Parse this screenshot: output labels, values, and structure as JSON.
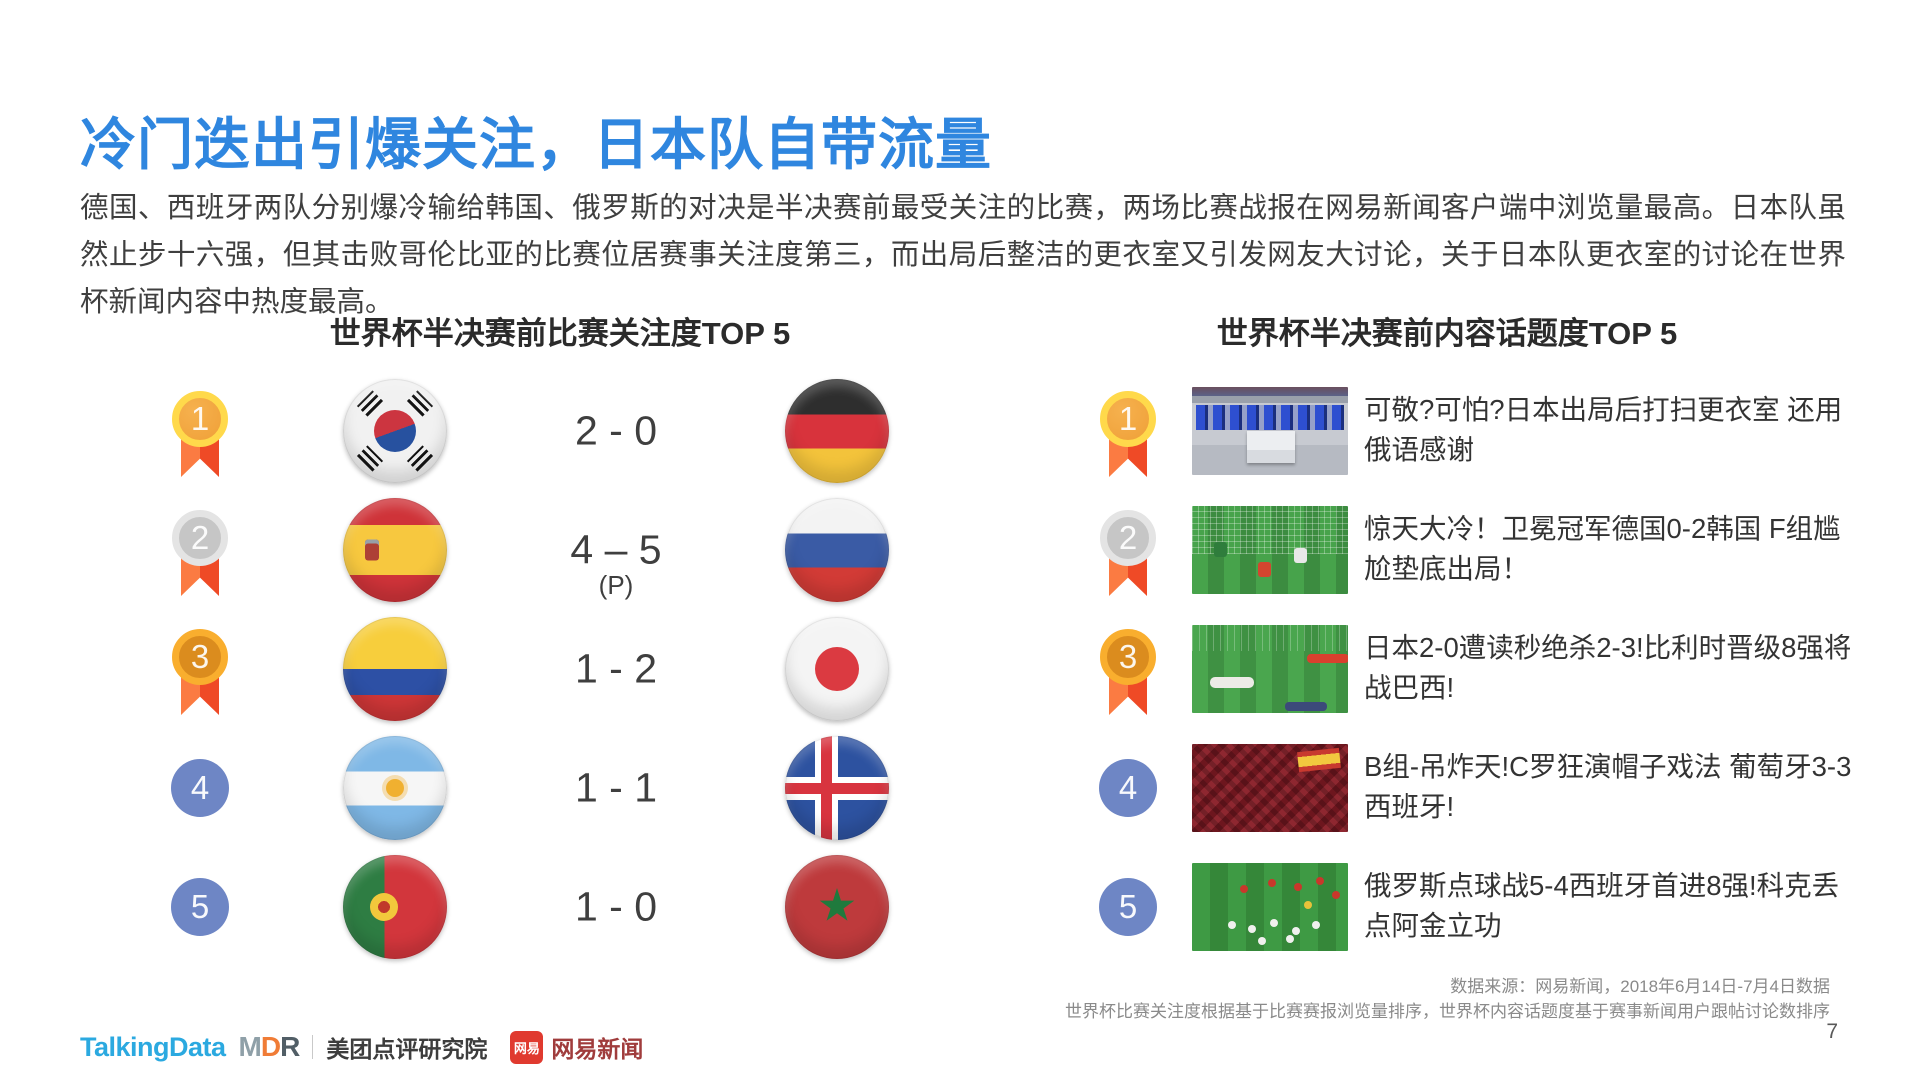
{
  "slide": {
    "title": "冷门迭出引爆关注，日本队自带流量",
    "body": "德国、西班牙两队分别爆冷输给韩国、俄罗斯的对决是半决赛前最受关注的比赛，两场比赛战报在网易新闻客户端中浏览量最高。日本队虽然止步十六强，但其击败哥伦比亚的比赛位居赛事关注度第三，而出局后整洁的更衣室又引发网友大讨论，关于日本队更衣室的讨论在世界杯新闻内容中热度最高。",
    "page_number": "7"
  },
  "match_ranking": {
    "title": "世界杯半决赛前比赛关注度TOP 5",
    "rows": [
      {
        "rank": "1",
        "badge": "gold-medal",
        "team_a": "south-korea",
        "score": "2 - 0",
        "note": "",
        "team_b": "germany"
      },
      {
        "rank": "2",
        "badge": "silver-medal",
        "team_a": "spain",
        "score": "4 – 5",
        "note": "(P)",
        "team_b": "russia"
      },
      {
        "rank": "3",
        "badge": "bronze-medal",
        "team_a": "colombia",
        "score": "1 - 2",
        "note": "",
        "team_b": "japan"
      },
      {
        "rank": "4",
        "badge": "blue-circle",
        "team_a": "argentina",
        "score": "1 - 1",
        "note": "",
        "team_b": "iceland"
      },
      {
        "rank": "5",
        "badge": "blue-circle",
        "team_a": "portugal",
        "score": "1 - 0",
        "note": "",
        "team_b": "morocco"
      }
    ]
  },
  "topic_ranking": {
    "title": "世界杯半决赛前内容话题度TOP 5",
    "rows": [
      {
        "rank": "1",
        "badge": "gold-medal",
        "thumbnail": "japan-locker-room",
        "headline": "可敬?可怕?日本出局后打扫更衣室 还用俄语感谢"
      },
      {
        "rank": "2",
        "badge": "silver-medal",
        "thumbnail": "germany-korea-match",
        "headline": "惊天大冷！卫冕冠军德国0-2韩国 F组尴尬垫底出局！"
      },
      {
        "rank": "3",
        "badge": "bronze-medal",
        "thumbnail": "japan-belgium-match",
        "headline": "日本2-0遭读秒绝杀2-3!比利时晋级8强将战巴西!"
      },
      {
        "rank": "4",
        "badge": "blue-circle",
        "thumbnail": "spain-fans-crowd",
        "headline": "B组-吊炸天!C罗狂演帽子戏法 葡萄牙3-3西班牙!"
      },
      {
        "rank": "5",
        "badge": "blue-circle",
        "thumbnail": "russia-celebration",
        "headline": "俄罗斯点球战5-4西班牙首进8强!科克丢点阿金立功"
      }
    ]
  },
  "footer": {
    "source_line1": "数据来源：网易新闻，2018年6月14日-7月4日数据",
    "source_line2": "世界杯比赛关注度根据基于比赛赛报浏览量排序，世界杯内容话题度基于赛事新闻用户跟帖讨论数排序",
    "logos": {
      "talkingdata": "TalkingData",
      "mdr_m": "M",
      "mdr_d": "D",
      "mdr_r": "R",
      "meituan_dianping": "美团点评研究院",
      "netease_badge": "网易",
      "netease_news": "网易新闻"
    }
  },
  "colors": {
    "title_blue": "#2F86DF",
    "body_text": "#3F3F3F",
    "gold": "#FFD94B",
    "silver": "#E4E4E4",
    "bronze": "#F9AE2E",
    "ribbon_red": "#EF4A26",
    "rank_blue": "#6E86C5",
    "netease_red": "#E03A2F"
  }
}
